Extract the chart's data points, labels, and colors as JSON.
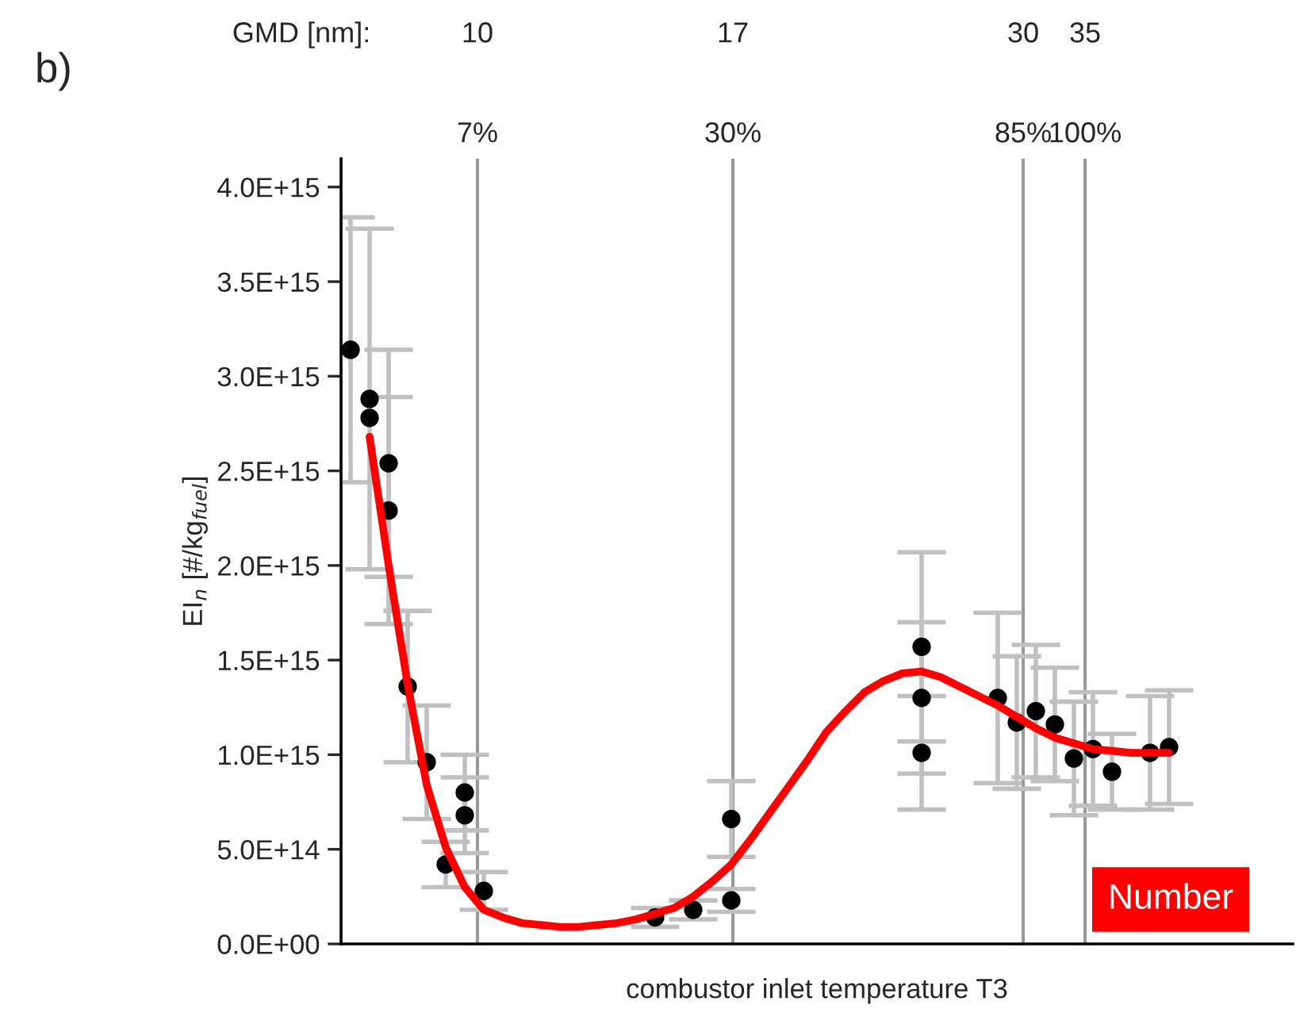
{
  "chart_data": {
    "type": "scatter",
    "xlabel": "combustor inlet temperature T3",
    "ylabel": "EI$_{n}$ [#/kg$_{fuel}$]",
    "categories": [
      null,
      null,
      null,
      null,
      null,
      null,
      null,
      null,
      null,
      null,
      null,
      null,
      null,
      null,
      null,
      null,
      null,
      null,
      null,
      null,
      null,
      null,
      null,
      null,
      null,
      null,
      null,
      null,
      null,
      null,
      null,
      null,
      null,
      null,
      null,
      null,
      null,
      null,
      null,
      null,
      null,
      null,
      null,
      null,
      null,
      null,
      null,
      null,
      null,
      null
    ],
    "ylim": [
      0,
      4150000000000000.0
    ],
    "yticks": [
      {
        "value": 0,
        "label": "0.0E+00"
      },
      {
        "value": 500000000000000.0,
        "label": "5.0E+14"
      },
      {
        "value": 1000000000000000.0,
        "label": "1.0E+15"
      },
      {
        "value": 1500000000000000.0,
        "label": "1.5E+15"
      },
      {
        "value": 2000000000000000.0,
        "label": "2.0E+15"
      },
      {
        "value": 2500000000000000.0,
        "label": "2.5E+15"
      },
      {
        "value": 3000000000000000.0,
        "label": "3.0E+15"
      },
      {
        "value": 3500000000000000.0,
        "label": "3.5E+15"
      },
      {
        "value": 4000000000000000.0,
        "label": "4.0E+15"
      }
    ],
    "tick_labels": "y",
    "marker": "circle",
    "grid": "x",
    "series": [
      {
        "color": "#000000",
        "values": [
          3140000000000000.0,
          2880000000000000.0,
          2540000000000000.0,
          1360000000000000.0,
          960000000000000.0,
          420000000000000.0,
          800000000000000.0,
          280000000000000.0,
          null,
          null,
          null,
          null,
          null,
          null,
          null,
          null,
          140000000000000.0,
          null,
          180000000000000.0,
          null,
          230000000000000.0,
          null,
          null,
          null,
          null,
          null,
          null,
          null,
          null,
          null,
          1570000000000000.0,
          null,
          null,
          null,
          1300000000000000.0,
          1170000000000000.0,
          1230000000000000.0,
          1160000000000000.0,
          980000000000000.0,
          1030000000000000.0,
          910000000000000.0,
          null,
          1010000000000000.0,
          1040000000000000.0,
          null,
          null,
          null,
          null,
          null,
          null
        ],
        "errors": [
          700000000000000.0,
          900000000000000.0,
          600000000000000.0,
          400000000000000.0,
          300000000000000.0,
          120000000000000.0,
          200000000000000.0,
          100000000000000.0,
          null,
          null,
          null,
          null,
          null,
          null,
          null,
          null,
          50000000000000.0,
          null,
          50000000000000.0,
          null,
          60000000000000.0,
          null,
          null,
          null,
          null,
          null,
          null,
          null,
          null,
          null,
          500000000000000.0,
          null,
          null,
          null,
          450000000000000.0,
          350000000000000.0,
          350000000000000.0,
          300000000000000.0,
          300000000000000.0,
          300000000000000.0,
          200000000000000.0,
          null,
          300000000000000.0,
          300000000000000.0,
          null,
          null,
          null,
          null,
          null,
          null
        ]
      },
      {
        "color": "#000000",
        "values": [
          null,
          2780000000000000.0,
          2290000000000000.0,
          null,
          null,
          null,
          680000000000000.0,
          null,
          null,
          null,
          null,
          null,
          null,
          null,
          null,
          null,
          null,
          null,
          null,
          null,
          660000000000000.0,
          null,
          null,
          null,
          null,
          null,
          null,
          null,
          null,
          null,
          1300000000000000.0,
          null,
          null,
          null,
          null,
          null,
          null,
          null,
          null,
          null,
          null,
          null,
          null,
          null,
          null,
          null,
          null,
          null,
          null,
          null
        ],
        "errors": [
          null,
          null,
          600000000000000.0,
          null,
          null,
          null,
          200000000000000.0,
          null,
          null,
          null,
          null,
          null,
          null,
          null,
          null,
          null,
          null,
          null,
          null,
          null,
          200000000000000.0,
          null,
          null,
          null,
          null,
          null,
          null,
          null,
          null,
          null,
          400000000000000.0,
          null,
          null,
          null,
          null,
          null,
          null,
          null,
          null,
          null,
          null,
          null,
          null,
          null,
          null,
          null,
          null,
          null,
          null,
          null
        ]
      },
      {
        "color": "#000000",
        "values": [
          null,
          null,
          null,
          null,
          null,
          null,
          null,
          null,
          null,
          null,
          null,
          null,
          null,
          null,
          null,
          null,
          null,
          null,
          null,
          null,
          null,
          null,
          null,
          null,
          null,
          null,
          null,
          null,
          null,
          null,
          1010000000000000.0,
          null,
          null,
          null,
          null,
          null,
          null,
          null,
          null,
          null,
          null,
          null,
          null,
          null,
          null,
          null,
          null,
          null,
          null,
          null
        ],
        "errors": [
          null,
          null,
          null,
          null,
          null,
          null,
          null,
          null,
          null,
          null,
          null,
          null,
          null,
          null,
          null,
          null,
          null,
          null,
          null,
          null,
          null,
          null,
          null,
          null,
          null,
          null,
          null,
          null,
          null,
          null,
          300000000000000.0,
          null,
          null,
          null,
          null,
          null,
          null,
          null,
          null,
          null,
          null,
          null,
          null,
          null,
          null,
          null,
          null,
          null,
          null,
          null
        ]
      },
      {
        "type": "line",
        "color": "#ff0000",
        "marker": "none",
        "values": [
          null,
          2680000000000000.0,
          2000000000000000.0,
          1370000000000000.0,
          840000000000000.0,
          510000000000000.0,
          300000000000000.0,
          180000000000000.0,
          140000000000000.0,
          110000000000000.0,
          100000000000000.0,
          90000000000000.0,
          90000000000000.0,
          100000000000000.0,
          110000000000000.0,
          130000000000000.0,
          160000000000000.0,
          190000000000000.0,
          250000000000000.0,
          330000000000000.0,
          420000000000000.0,
          550000000000000.0,
          690000000000000.0,
          830000000000000.0,
          970000000000000.0,
          1120000000000000.0,
          1230000000000000.0,
          1330000000000000.0,
          1390000000000000.0,
          1430000000000000.0,
          1440000000000000.0,
          1410000000000000.0,
          1360000000000000.0,
          1310000000000000.0,
          1260000000000000.0,
          1200000000000000.0,
          1140000000000000.0,
          1090000000000000.0,
          1060000000000000.0,
          1030000000000000.0,
          1020000000000000.0,
          1010000000000000.0,
          1010000000000000.0,
          1010000000000000.0,
          null,
          null,
          null,
          null,
          null,
          null
        ]
      }
    ],
    "annotations": [
      "b)",
      "GMD [nm]:",
      "10",
      "17",
      "30",
      "35",
      "7%",
      "30%",
      "85%",
      "100%",
      "Number"
    ]
  }
}
